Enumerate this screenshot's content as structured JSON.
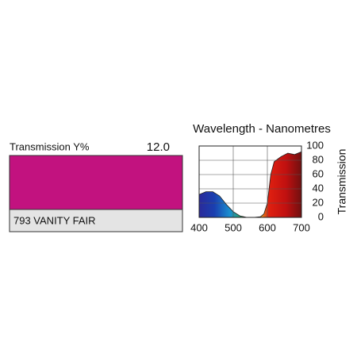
{
  "swatch": {
    "label": "Transmission Y%",
    "transmission": "12.0",
    "name": "793 VANITY FAIR",
    "color": "#c2127f"
  },
  "chart_data": {
    "type": "area",
    "title": "Wavelength - Nanometres",
    "y_label": "Transmission",
    "x": [
      400,
      420,
      440,
      460,
      480,
      500,
      520,
      540,
      560,
      580,
      590,
      600,
      610,
      620,
      640,
      660,
      680,
      700
    ],
    "values": [
      32,
      36,
      36,
      30,
      18,
      8,
      2,
      0,
      0,
      1,
      5,
      20,
      60,
      78,
      85,
      90,
      88,
      92
    ],
    "xlim": [
      400,
      700
    ],
    "xticks": [
      400,
      500,
      600,
      700
    ],
    "ylim": [
      0,
      100
    ],
    "yticks": [
      0,
      20,
      40,
      60,
      80,
      100
    ],
    "grid": true
  }
}
